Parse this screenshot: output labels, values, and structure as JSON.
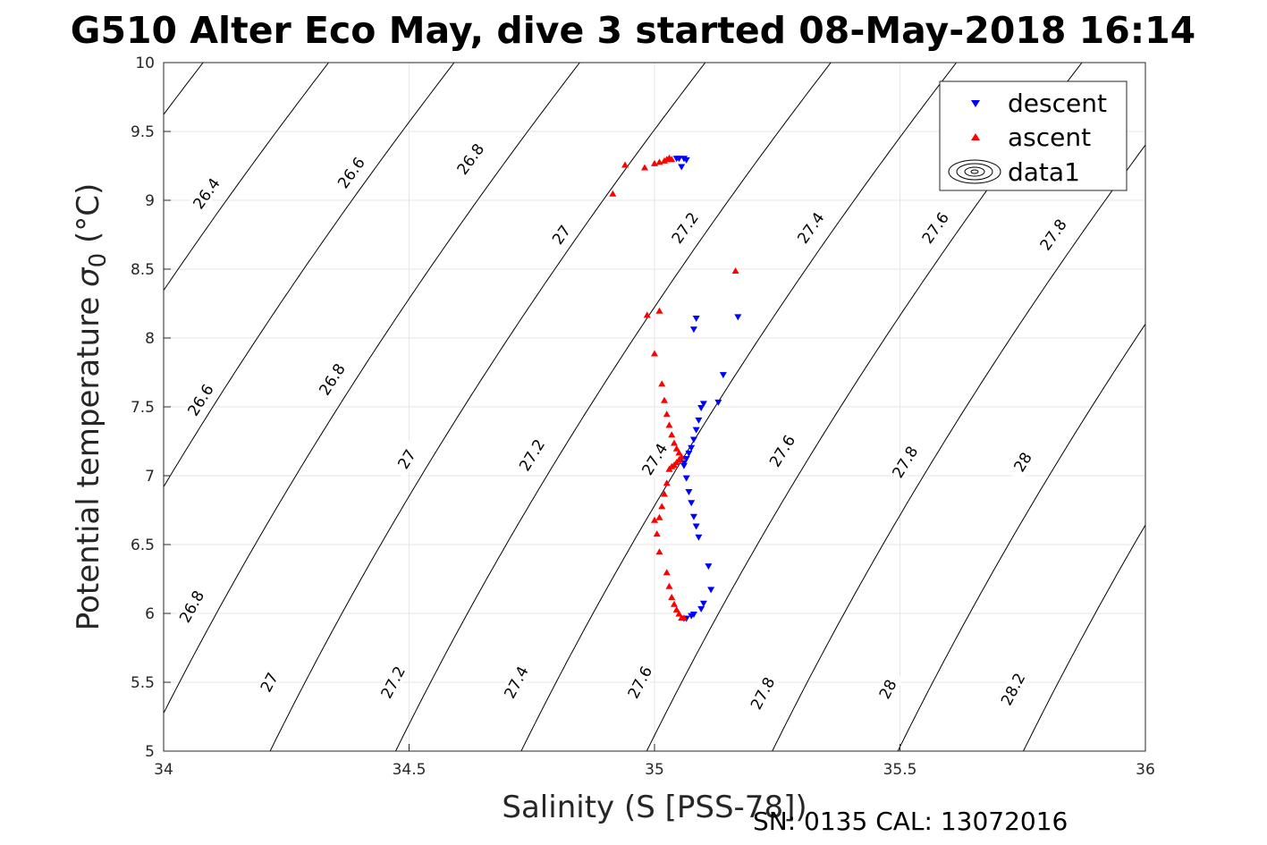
{
  "chart_data": {
    "type": "scatter",
    "title": "G510 Alter Eco May, dive 3 started 08-May-2018 16:14",
    "xlabel": "Salinity (S [PSS-78])",
    "ylabel_main": "Potential temperature ",
    "ylabel_symbol": "σ",
    "ylabel_subscript": "0",
    "ylabel_unit": " (°C)",
    "xlim": [
      34,
      36
    ],
    "ylim": [
      5,
      10
    ],
    "xticks": [
      "34",
      "34.5",
      "35",
      "35.5",
      "36"
    ],
    "yticks": [
      "5",
      "5.5",
      "6",
      "6.5",
      "7",
      "7.5",
      "8",
      "8.5",
      "9",
      "9.5",
      "10"
    ],
    "grid": true,
    "legend_position": "top-right",
    "footer": "SN: 0135  CAL: 13072016",
    "legend": [
      {
        "label": "descent",
        "color": "#0000ff",
        "marker": "triangle-down"
      },
      {
        "label": "ascent",
        "color": "#ff0000",
        "marker": "triangle-up"
      },
      {
        "label": "data1",
        "color": "#000000",
        "marker": "contour"
      }
    ],
    "contours": {
      "levels": [
        26.4,
        26.6,
        26.8,
        27.0,
        27.2,
        27.4,
        27.6,
        27.8,
        28.0,
        28.2
      ],
      "line_color": "#000000",
      "labels": [
        {
          "text": "26.4",
          "s": 34.087,
          "t": 9.05
        },
        {
          "text": "26.6",
          "s": 34.382,
          "t": 9.2
        },
        {
          "text": "26.8",
          "s": 34.625,
          "t": 9.3
        },
        {
          "text": "27",
          "s": 34.81,
          "t": 8.75
        },
        {
          "text": "27.2",
          "s": 35.062,
          "t": 8.8
        },
        {
          "text": "27.4",
          "s": 35.318,
          "t": 8.8
        },
        {
          "text": "27.6",
          "s": 35.572,
          "t": 8.8
        },
        {
          "text": "27.8",
          "s": 35.812,
          "t": 8.75
        },
        {
          "text": "26.6",
          "s": 34.075,
          "t": 7.55
        },
        {
          "text": "26.8",
          "s": 34.343,
          "t": 7.7
        },
        {
          "text": "27",
          "s": 34.495,
          "t": 7.12
        },
        {
          "text": "27.2",
          "s": 34.75,
          "t": 7.15
        },
        {
          "text": "27.4",
          "s": 35.0,
          "t": 7.12
        },
        {
          "text": "27.6",
          "s": 35.26,
          "t": 7.18
        },
        {
          "text": "27.8",
          "s": 35.51,
          "t": 7.1
        },
        {
          "text": "28",
          "s": 35.75,
          "t": 7.1
        },
        {
          "text": "26.8",
          "s": 34.057,
          "t": 6.05
        },
        {
          "text": "27",
          "s": 34.215,
          "t": 5.5
        },
        {
          "text": "27.2",
          "s": 34.467,
          "t": 5.5
        },
        {
          "text": "27.4",
          "s": 34.718,
          "t": 5.5
        },
        {
          "text": "27.6",
          "s": 34.97,
          "t": 5.5
        },
        {
          "text": "27.8",
          "s": 35.22,
          "t": 5.42
        },
        {
          "text": "28",
          "s": 35.475,
          "t": 5.45
        },
        {
          "text": "28.2",
          "s": 35.73,
          "t": 5.45
        }
      ]
    },
    "series": [
      {
        "name": "descent",
        "color": "#0000ff",
        "marker": "triangle-down",
        "points": [
          [
            35.045,
            9.3
          ],
          [
            35.05,
            9.3
          ],
          [
            35.06,
            9.3
          ],
          [
            35.065,
            9.29
          ],
          [
            35.055,
            9.24
          ],
          [
            35.08,
            8.06
          ],
          [
            35.085,
            8.14
          ],
          [
            35.17,
            8.15
          ],
          [
            35.14,
            7.73
          ],
          [
            35.13,
            7.53
          ],
          [
            35.1,
            7.52
          ],
          [
            35.095,
            7.49
          ],
          [
            35.09,
            7.4
          ],
          [
            35.085,
            7.33
          ],
          [
            35.08,
            7.26
          ],
          [
            35.075,
            7.2
          ],
          [
            35.07,
            7.16
          ],
          [
            35.065,
            7.12
          ],
          [
            35.06,
            7.09
          ],
          [
            35.06,
            7.07
          ],
          [
            35.065,
            6.98
          ],
          [
            35.07,
            6.88
          ],
          [
            35.075,
            6.8
          ],
          [
            35.08,
            6.7
          ],
          [
            35.085,
            6.63
          ],
          [
            35.09,
            6.55
          ],
          [
            35.11,
            6.34
          ],
          [
            35.115,
            6.17
          ],
          [
            35.1,
            6.07
          ],
          [
            35.095,
            6.03
          ],
          [
            35.08,
            5.99
          ],
          [
            35.075,
            5.98
          ],
          [
            35.065,
            5.96
          ],
          [
            35.06,
            5.96
          ]
        ]
      },
      {
        "name": "ascent",
        "color": "#ff0000",
        "marker": "triangle-up",
        "points": [
          [
            34.915,
            9.05
          ],
          [
            34.94,
            9.26
          ],
          [
            34.98,
            9.24
          ],
          [
            35.0,
            9.27
          ],
          [
            35.01,
            9.28
          ],
          [
            35.02,
            9.29
          ],
          [
            35.025,
            9.3
          ],
          [
            35.03,
            9.31
          ],
          [
            35.035,
            9.3
          ],
          [
            35.165,
            8.49
          ],
          [
            34.985,
            8.17
          ],
          [
            35.01,
            8.2
          ],
          [
            35.0,
            7.89
          ],
          [
            35.015,
            7.67
          ],
          [
            35.02,
            7.55
          ],
          [
            35.025,
            7.45
          ],
          [
            35.03,
            7.37
          ],
          [
            35.035,
            7.3
          ],
          [
            35.04,
            7.24
          ],
          [
            35.045,
            7.2
          ],
          [
            35.05,
            7.17
          ],
          [
            35.055,
            7.14
          ],
          [
            35.05,
            7.12
          ],
          [
            35.045,
            7.1
          ],
          [
            35.04,
            7.08
          ],
          [
            35.035,
            7.07
          ],
          [
            35.03,
            7.05
          ],
          [
            35.025,
            6.95
          ],
          [
            35.02,
            6.87
          ],
          [
            35.015,
            6.78
          ],
          [
            35.01,
            6.7
          ],
          [
            35.0,
            6.68
          ],
          [
            35.005,
            6.58
          ],
          [
            35.01,
            6.45
          ],
          [
            35.025,
            6.3
          ],
          [
            35.03,
            6.2
          ],
          [
            35.035,
            6.12
          ],
          [
            35.04,
            6.07
          ],
          [
            35.045,
            6.03
          ],
          [
            35.05,
            6.0
          ],
          [
            35.055,
            5.97
          ],
          [
            35.06,
            5.97
          ]
        ]
      }
    ]
  }
}
